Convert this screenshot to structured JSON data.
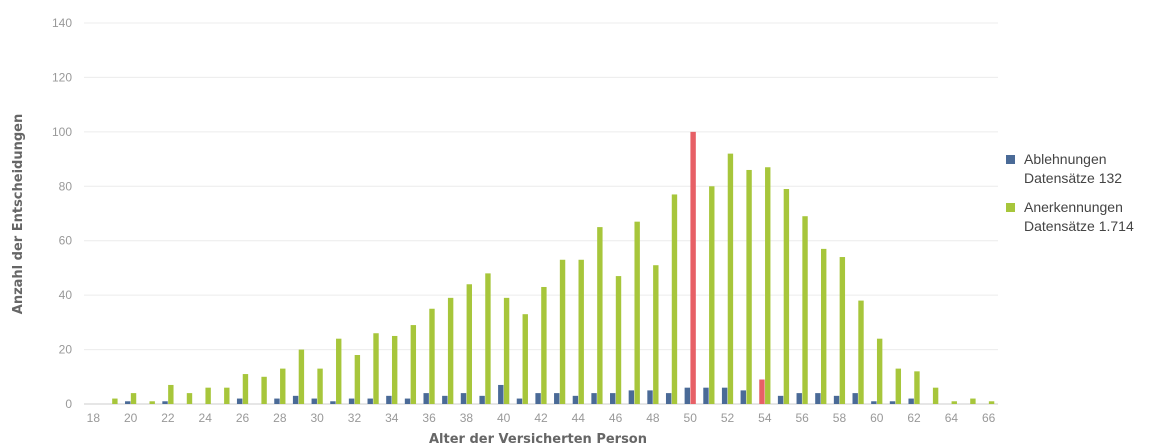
{
  "chart_data": {
    "type": "bar",
    "title": "",
    "xlabel": "Alter der Versicherten Person",
    "ylabel": "Anzahl der Entscheidungen",
    "ylim": [
      0,
      140
    ],
    "yticks": [
      0,
      20,
      40,
      60,
      80,
      100,
      120,
      140
    ],
    "x": [
      18,
      19,
      20,
      21,
      22,
      23,
      24,
      25,
      26,
      27,
      28,
      29,
      30,
      31,
      32,
      33,
      34,
      35,
      36,
      37,
      38,
      39,
      40,
      41,
      42,
      43,
      44,
      45,
      46,
      47,
      48,
      49,
      50,
      51,
      52,
      53,
      54,
      55,
      56,
      57,
      58,
      59,
      60,
      61,
      62,
      63,
      64,
      65,
      66
    ],
    "xtick_labels": [
      "18",
      "20",
      "22",
      "24",
      "26",
      "28",
      "30",
      "32",
      "34",
      "36",
      "38",
      "40",
      "42",
      "44",
      "46",
      "48",
      "50",
      "52",
      "54",
      "56",
      "58",
      "60",
      "62",
      "64",
      "66"
    ],
    "grid": true,
    "legend_position": "right",
    "series": [
      {
        "name": "Ablehnungen",
        "legend_line2": "Datensätze 132",
        "color": "#4a6a97",
        "values": [
          0,
          0,
          1,
          0,
          1,
          0,
          0,
          0,
          2,
          0,
          2,
          3,
          2,
          1,
          2,
          2,
          3,
          2,
          4,
          3,
          4,
          3,
          7,
          2,
          4,
          4,
          3,
          4,
          4,
          5,
          5,
          4,
          6,
          6,
          6,
          5,
          9,
          3,
          4,
          4,
          3,
          4,
          1,
          1,
          2,
          0,
          0,
          0,
          0
        ]
      },
      {
        "name": "Anerkennungen",
        "legend_line2": "Datensätze 1.714",
        "color": "#a7c63b",
        "values": [
          0,
          2,
          4,
          1,
          7,
          4,
          6,
          6,
          11,
          10,
          13,
          20,
          13,
          24,
          18,
          26,
          25,
          29,
          35,
          39,
          44,
          48,
          39,
          33,
          43,
          53,
          53,
          65,
          47,
          67,
          51,
          77,
          100,
          80,
          92,
          86,
          87,
          79,
          69,
          57,
          54,
          38,
          24,
          13,
          12,
          6,
          1,
          2,
          1
        ]
      }
    ],
    "highlight": {
      "color": "#e76066",
      "bars": [
        {
          "series": "Anerkennungen",
          "x": 50
        },
        {
          "series": "Ablehnungen",
          "x": 54
        }
      ]
    }
  }
}
